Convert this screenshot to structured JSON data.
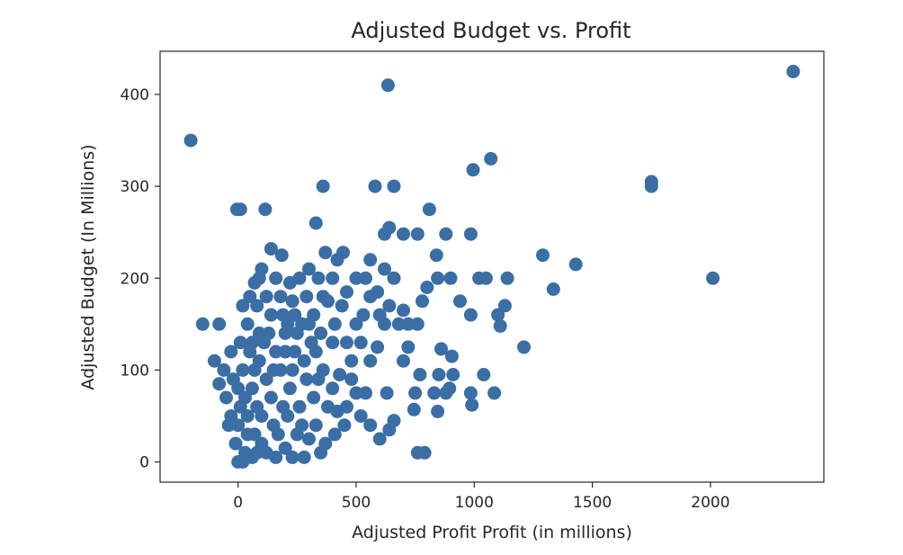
{
  "chart_data": {
    "type": "scatter",
    "title": "Adjusted Budget vs. Profit",
    "xlabel": "Adjusted Profit Profit (in millions)",
    "ylabel": "Adjusted Budget (In Millions)",
    "xlim": [
      -330,
      2480
    ],
    "ylim": [
      -22,
      447
    ],
    "xticks": [
      0,
      500,
      1000,
      1500,
      2000
    ],
    "xtick_labels": [
      "0",
      "500",
      "1000",
      "1500",
      "2000"
    ],
    "yticks": [
      0,
      100,
      200,
      300,
      400
    ],
    "ytick_labels": [
      "0",
      "100",
      "200",
      "300",
      "400"
    ],
    "grid": false,
    "marker_color": "#3a6ea5",
    "points": [
      {
        "x": 2350,
        "y": 425
      },
      {
        "x": 635,
        "y": 410
      },
      {
        "x": -200,
        "y": 350
      },
      {
        "x": 1070,
        "y": 330
      },
      {
        "x": 995,
        "y": 318
      },
      {
        "x": 1750,
        "y": 305
      },
      {
        "x": 1750,
        "y": 300
      },
      {
        "x": 2010,
        "y": 200
      },
      {
        "x": 360,
        "y": 300
      },
      {
        "x": 580,
        "y": 300
      },
      {
        "x": 660,
        "y": 300
      },
      {
        "x": -5,
        "y": 275
      },
      {
        "x": 10,
        "y": 275
      },
      {
        "x": 115,
        "y": 275
      },
      {
        "x": 810,
        "y": 275
      },
      {
        "x": 330,
        "y": 260
      },
      {
        "x": 640,
        "y": 255
      },
      {
        "x": 620,
        "y": 248
      },
      {
        "x": 700,
        "y": 248
      },
      {
        "x": 760,
        "y": 248
      },
      {
        "x": 880,
        "y": 248
      },
      {
        "x": 985,
        "y": 248
      },
      {
        "x": 140,
        "y": 232
      },
      {
        "x": 370,
        "y": 228
      },
      {
        "x": 445,
        "y": 228
      },
      {
        "x": 185,
        "y": 225
      },
      {
        "x": 1290,
        "y": 225
      },
      {
        "x": 420,
        "y": 220
      },
      {
        "x": 840,
        "y": 225
      },
      {
        "x": 1430,
        "y": 215
      },
      {
        "x": 1335,
        "y": 188
      },
      {
        "x": 1140,
        "y": 200
      },
      {
        "x": 1020,
        "y": 200
      },
      {
        "x": 1050,
        "y": 200
      },
      {
        "x": 900,
        "y": 200
      },
      {
        "x": 845,
        "y": 200
      },
      {
        "x": 1100,
        "y": 160
      },
      {
        "x": 1130,
        "y": 170
      },
      {
        "x": 1110,
        "y": 148
      },
      {
        "x": 985,
        "y": 160
      },
      {
        "x": 940,
        "y": 175
      },
      {
        "x": 1210,
        "y": 125
      },
      {
        "x": 1040,
        "y": 95
      },
      {
        "x": 1085,
        "y": 75
      },
      {
        "x": 910,
        "y": 95
      },
      {
        "x": 860,
        "y": 123
      },
      {
        "x": 905,
        "y": 115
      },
      {
        "x": 985,
        "y": 75
      },
      {
        "x": 990,
        "y": 62
      },
      {
        "x": 880,
        "y": 75
      },
      {
        "x": 895,
        "y": 80
      },
      {
        "x": 850,
        "y": 95
      },
      {
        "x": 830,
        "y": 75
      },
      {
        "x": 845,
        "y": 55
      },
      {
        "x": 750,
        "y": 75
      },
      {
        "x": 745,
        "y": 57
      },
      {
        "x": 770,
        "y": 95
      },
      {
        "x": 760,
        "y": 150
      },
      {
        "x": 720,
        "y": 150
      },
      {
        "x": 780,
        "y": 175
      },
      {
        "x": 800,
        "y": 190
      },
      {
        "x": 760,
        "y": 10
      },
      {
        "x": 790,
        "y": 10
      },
      {
        "x": 640,
        "y": 35
      },
      {
        "x": 600,
        "y": 25
      },
      {
        "x": 660,
        "y": 45
      },
      {
        "x": 630,
        "y": 75
      },
      {
        "x": 540,
        "y": 75
      },
      {
        "x": 500,
        "y": 75
      },
      {
        "x": 460,
        "y": 60
      },
      {
        "x": 560,
        "y": 110
      },
      {
        "x": 590,
        "y": 125
      },
      {
        "x": 620,
        "y": 150
      },
      {
        "x": 680,
        "y": 150
      },
      {
        "x": 700,
        "y": 165
      },
      {
        "x": 720,
        "y": 125
      },
      {
        "x": 700,
        "y": 110
      },
      {
        "x": 660,
        "y": 200
      },
      {
        "x": 620,
        "y": 210
      },
      {
        "x": 540,
        "y": 200
      },
      {
        "x": 500,
        "y": 200
      },
      {
        "x": 560,
        "y": 220
      },
      {
        "x": 640,
        "y": 170
      },
      {
        "x": 590,
        "y": 185
      },
      {
        "x": 500,
        "y": 150
      },
      {
        "x": 520,
        "y": 130
      },
      {
        "x": 480,
        "y": 110
      },
      {
        "x": 430,
        "y": 95
      },
      {
        "x": 400,
        "y": 80
      },
      {
        "x": 420,
        "y": 55
      },
      {
        "x": 440,
        "y": 170
      },
      {
        "x": 460,
        "y": 185
      },
      {
        "x": 400,
        "y": 200
      },
      {
        "x": 380,
        "y": 175
      },
      {
        "x": 340,
        "y": 200
      },
      {
        "x": 300,
        "y": 210
      },
      {
        "x": 260,
        "y": 200
      },
      {
        "x": 220,
        "y": 195
      },
      {
        "x": 180,
        "y": 180
      },
      {
        "x": 160,
        "y": 200
      },
      {
        "x": 100,
        "y": 210
      },
      {
        "x": 70,
        "y": 195
      },
      {
        "x": -80,
        "y": 150
      },
      {
        "x": -150,
        "y": 150
      },
      {
        "x": -100,
        "y": 110
      },
      {
        "x": 240,
        "y": 160
      },
      {
        "x": 300,
        "y": 150
      },
      {
        "x": 350,
        "y": 140
      },
      {
        "x": 400,
        "y": 130
      },
      {
        "x": 330,
        "y": 120
      },
      {
        "x": 280,
        "y": 110
      },
      {
        "x": 360,
        "y": 100
      },
      {
        "x": 380,
        "y": 60
      },
      {
        "x": 330,
        "y": 40
      },
      {
        "x": 300,
        "y": 25
      },
      {
        "x": 370,
        "y": 20
      },
      {
        "x": 250,
        "y": 30
      },
      {
        "x": 200,
        "y": 15
      },
      {
        "x": 150,
        "y": 40
      },
      {
        "x": 100,
        "y": 20
      },
      {
        "x": 60,
        "y": 5
      },
      {
        "x": 20,
        "y": 0
      },
      {
        "x": 0,
        "y": 0
      },
      {
        "x": 40,
        "y": 30
      },
      {
        "x": 80,
        "y": 60
      },
      {
        "x": 120,
        "y": 90
      },
      {
        "x": 160,
        "y": 120
      },
      {
        "x": 200,
        "y": 140
      },
      {
        "x": 140,
        "y": 160
      },
      {
        "x": 90,
        "y": 140
      },
      {
        "x": 50,
        "y": 120
      },
      {
        "x": 20,
        "y": 100
      },
      {
        "x": -20,
        "y": 90
      },
      {
        "x": -50,
        "y": 70
      },
      {
        "x": -30,
        "y": 50
      },
      {
        "x": 0,
        "y": 40
      },
      {
        "x": 30,
        "y": 70
      },
      {
        "x": 70,
        "y": 100
      },
      {
        "x": 110,
        "y": 130
      },
      {
        "x": 180,
        "y": 100
      },
      {
        "x": 220,
        "y": 80
      },
      {
        "x": 260,
        "y": 60
      },
      {
        "x": 290,
        "y": 90
      },
      {
        "x": 240,
        "y": 120
      },
      {
        "x": 190,
        "y": 60
      },
      {
        "x": 140,
        "y": 70
      },
      {
        "x": 100,
        "y": 50
      },
      {
        "x": 60,
        "y": 80
      },
      {
        "x": 10,
        "y": 60
      },
      {
        "x": -10,
        "y": 20
      },
      {
        "x": 30,
        "y": 10
      },
      {
        "x": 70,
        "y": 30
      },
      {
        "x": 120,
        "y": 10
      },
      {
        "x": 170,
        "y": 30
      },
      {
        "x": 210,
        "y": 50
      },
      {
        "x": 270,
        "y": 40
      },
      {
        "x": 320,
        "y": 70
      },
      {
        "x": 340,
        "y": 90
      },
      {
        "x": 270,
        "y": 150
      },
      {
        "x": 230,
        "y": 175
      },
      {
        "x": 190,
        "y": 160
      },
      {
        "x": 120,
        "y": 180
      },
      {
        "x": 80,
        "y": 170
      },
      {
        "x": 40,
        "y": 150
      },
      {
        "x": 10,
        "y": 130
      },
      {
        "x": -30,
        "y": 120
      },
      {
        "x": -60,
        "y": 100
      },
      {
        "x": -80,
        "y": 85
      },
      {
        "x": 50,
        "y": 180
      },
      {
        "x": 90,
        "y": 200
      },
      {
        "x": 20,
        "y": 170
      },
      {
        "x": 150,
        "y": 100
      },
      {
        "x": 230,
        "y": 100
      },
      {
        "x": 310,
        "y": 130
      },
      {
        "x": 410,
        "y": 150
      },
      {
        "x": 460,
        "y": 130
      },
      {
        "x": 530,
        "y": 160
      },
      {
        "x": 560,
        "y": 180
      },
      {
        "x": 600,
        "y": 160
      },
      {
        "x": 480,
        "y": 90
      },
      {
        "x": 520,
        "y": 50
      },
      {
        "x": 560,
        "y": 40
      },
      {
        "x": 450,
        "y": 40
      },
      {
        "x": 410,
        "y": 30
      },
      {
        "x": 350,
        "y": 10
      },
      {
        "x": 280,
        "y": 5
      },
      {
        "x": 230,
        "y": 5
      },
      {
        "x": 160,
        "y": 5
      },
      {
        "x": 80,
        "y": 10
      },
      {
        "x": 40,
        "y": 50
      },
      {
        "x": 90,
        "y": 110
      },
      {
        "x": 130,
        "y": 140
      },
      {
        "x": 60,
        "y": 130
      },
      {
        "x": 0,
        "y": 80
      },
      {
        "x": -40,
        "y": 40
      },
      {
        "x": 200,
        "y": 120
      },
      {
        "x": 250,
        "y": 140
      },
      {
        "x": 320,
        "y": 160
      },
      {
        "x": 360,
        "y": 180
      },
      {
        "x": 290,
        "y": 180
      },
      {
        "x": 210,
        "y": 150
      }
    ]
  }
}
